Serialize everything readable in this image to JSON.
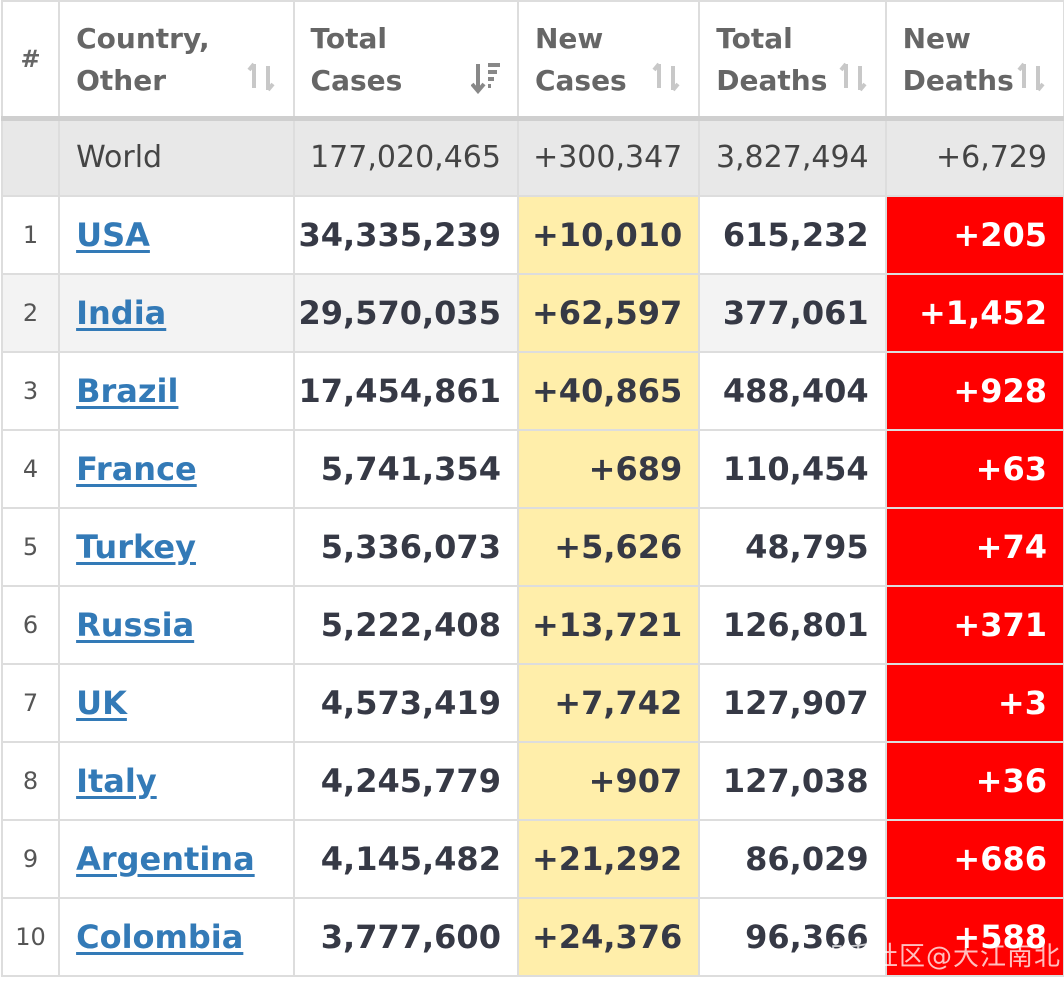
{
  "header": {
    "rank": "#",
    "country_line1": "Country,",
    "country_line2": "Other",
    "total_cases_line1": "Total",
    "total_cases_line2": "Cases",
    "new_cases_line1": "New",
    "new_cases_line2": "Cases",
    "total_deaths_line1": "Total",
    "total_deaths_line2": "Deaths",
    "new_deaths_line1": "New",
    "new_deaths_line2": "Deaths"
  },
  "world": {
    "name": "World",
    "total_cases": "177,020,465",
    "new_cases": "+300,347",
    "total_deaths": "3,827,494",
    "new_deaths": "+6,729"
  },
  "rows": [
    {
      "rank": "1",
      "country": "USA",
      "total_cases": "34,335,239",
      "new_cases": "+10,010",
      "total_deaths": "615,232",
      "new_deaths": "+205"
    },
    {
      "rank": "2",
      "country": "India",
      "total_cases": "29,570,035",
      "new_cases": "+62,597",
      "total_deaths": "377,061",
      "new_deaths": "+1,452"
    },
    {
      "rank": "3",
      "country": "Brazil",
      "total_cases": "17,454,861",
      "new_cases": "+40,865",
      "total_deaths": "488,404",
      "new_deaths": "+928"
    },
    {
      "rank": "4",
      "country": "France",
      "total_cases": "5,741,354",
      "new_cases": "+689",
      "total_deaths": "110,454",
      "new_deaths": "+63"
    },
    {
      "rank": "5",
      "country": "Turkey",
      "total_cases": "5,336,073",
      "new_cases": "+5,626",
      "total_deaths": "48,795",
      "new_deaths": "+74"
    },
    {
      "rank": "6",
      "country": "Russia",
      "total_cases": "5,222,408",
      "new_cases": "+13,721",
      "total_deaths": "126,801",
      "new_deaths": "+371"
    },
    {
      "rank": "7",
      "country": "UK",
      "total_cases": "4,573,419",
      "new_cases": "+7,742",
      "total_deaths": "127,907",
      "new_deaths": "+3"
    },
    {
      "rank": "8",
      "country": "Italy",
      "total_cases": "4,245,779",
      "new_cases": "+907",
      "total_deaths": "127,038",
      "new_deaths": "+36"
    },
    {
      "rank": "9",
      "country": "Argentina",
      "total_cases": "4,145,482",
      "new_cases": "+21,292",
      "total_deaths": "86,029",
      "new_deaths": "+686"
    },
    {
      "rank": "10",
      "country": "Colombia",
      "total_cases": "3,777,600",
      "new_cases": "+24,376",
      "total_deaths": "96,366",
      "new_deaths": "+588"
    }
  ],
  "watermark": "知乎社区@大江南北",
  "colors": {
    "new_cases_bg": "#ffeeaa",
    "new_deaths_bg": "#ff0000",
    "link": "#337ab7",
    "world_row_bg": "#e8e8e8"
  },
  "icons": {
    "sort_inactive": "sort-icon",
    "sort_active": "sort-desc-icon"
  }
}
